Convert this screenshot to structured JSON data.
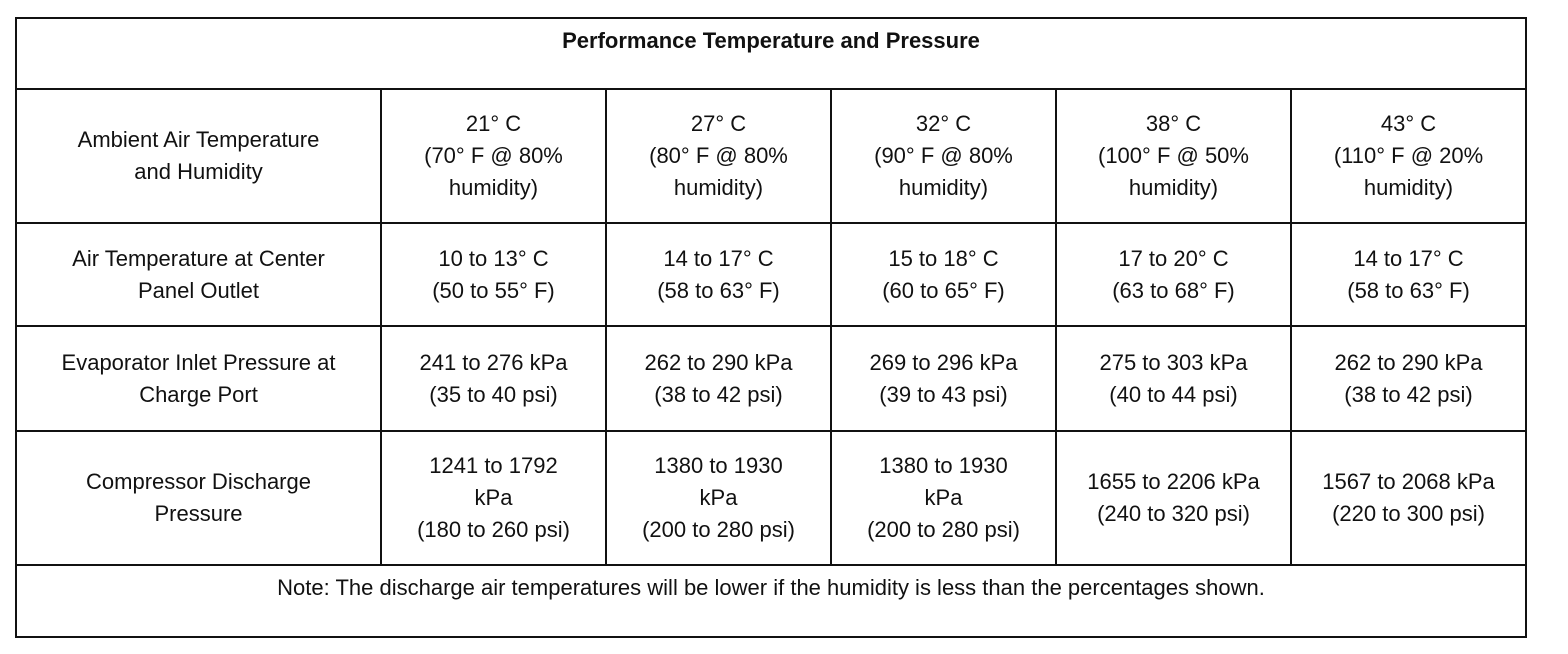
{
  "table": {
    "title": "Performance Temperature and Pressure",
    "rows": [
      {
        "label": [
          "Ambient Air Temperature",
          "and Humidity"
        ],
        "cells": [
          [
            "21° C",
            "(70° F @ 80%",
            "humidity)"
          ],
          [
            "27° C",
            "(80° F @ 80%",
            "humidity)"
          ],
          [
            "32° C",
            "(90° F @ 80%",
            "humidity)"
          ],
          [
            "38° C",
            "(100° F @ 50%",
            "humidity)"
          ],
          [
            "43° C",
            "(110° F @ 20%",
            "humidity)"
          ]
        ]
      },
      {
        "label": [
          "Air Temperature at Center",
          "Panel Outlet"
        ],
        "cells": [
          [
            "10 to 13° C",
            "(50 to 55° F)"
          ],
          [
            "14 to 17° C",
            "(58 to 63° F)"
          ],
          [
            "15 to 18° C",
            "(60 to 65° F)"
          ],
          [
            "17 to 20° C",
            "(63 to 68° F)"
          ],
          [
            "14 to 17° C",
            "(58 to 63° F)"
          ]
        ]
      },
      {
        "label": [
          "Evaporator Inlet Pressure at",
          "Charge Port"
        ],
        "cells": [
          [
            "241 to 276 kPa",
            "(35 to 40 psi)"
          ],
          [
            "262 to 290 kPa",
            "(38 to 42 psi)"
          ],
          [
            "269 to 296 kPa",
            "(39 to 43 psi)"
          ],
          [
            "275 to 303 kPa",
            "(40 to 44 psi)"
          ],
          [
            "262 to 290 kPa",
            "(38 to 42 psi)"
          ]
        ]
      },
      {
        "label": [
          "Compressor Discharge",
          "Pressure"
        ],
        "cells": [
          [
            "1241 to 1792",
            "kPa",
            "(180 to 260 psi)"
          ],
          [
            "1380 to 1930",
            "kPa",
            "(200 to 280 psi)"
          ],
          [
            "1380 to 1930",
            "kPa",
            "(200 to 280 psi)"
          ],
          [
            "1655 to 2206 kPa",
            "(240 to 320 psi)"
          ],
          [
            "1567 to 2068 kPa",
            "(220 to 300 psi)"
          ]
        ]
      }
    ],
    "note": "Note: The discharge air temperatures will be lower if the humidity is less than the percentages shown."
  }
}
